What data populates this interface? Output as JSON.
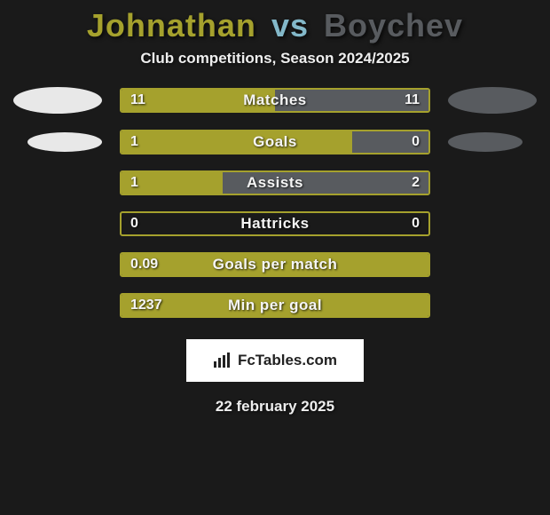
{
  "colors": {
    "bg": "#1a1a1a",
    "p1_accent": "#a5a12d",
    "p2_accent": "#585b5f",
    "bar_border": "#a5a12d",
    "oval_left": "#e8e8e8",
    "oval_right": "#585b5f",
    "title_p1": "#a5a12d",
    "title_vs": "#83b8c9",
    "title_p2": "#585b5f"
  },
  "header": {
    "player1": "Johnathan",
    "vs": "vs",
    "player2": "Boychev",
    "subtitle": "Club competitions, Season 2024/2025"
  },
  "rows": [
    {
      "label": "Matches",
      "left_val": "11",
      "right_val": "11",
      "left_pct": 50,
      "right_pct": 50,
      "show_ovals": true,
      "oval_thin": false
    },
    {
      "label": "Goals",
      "left_val": "1",
      "right_val": "0",
      "left_pct": 75,
      "right_pct": 25,
      "show_ovals": true,
      "oval_thin": true
    },
    {
      "label": "Assists",
      "left_val": "1",
      "right_val": "2",
      "left_pct": 33,
      "right_pct": 67,
      "show_ovals": false
    },
    {
      "label": "Hattricks",
      "left_val": "0",
      "right_val": "0",
      "left_pct": 0,
      "right_pct": 0,
      "show_ovals": false
    },
    {
      "label": "Goals per match",
      "left_val": "0.09",
      "right_val": "",
      "left_pct": 100,
      "right_pct": 0,
      "show_ovals": false
    },
    {
      "label": "Min per goal",
      "left_val": "1237",
      "right_val": "",
      "left_pct": 100,
      "right_pct": 0,
      "show_ovals": false
    }
  ],
  "badge": {
    "text": "FcTables.com"
  },
  "date": "22 february 2025"
}
